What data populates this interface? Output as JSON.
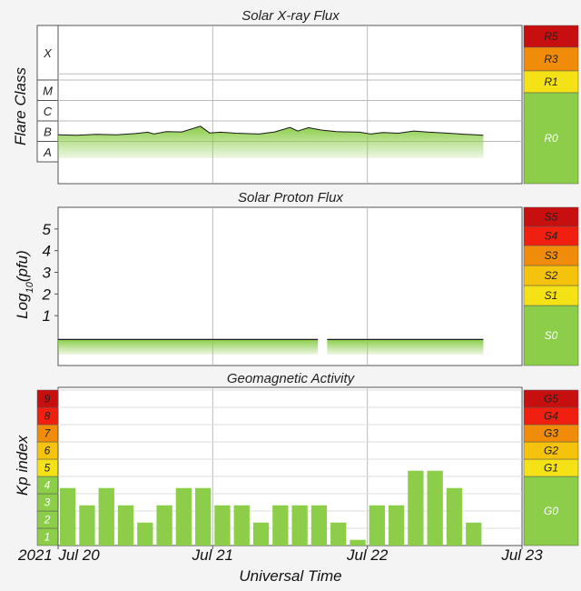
{
  "colors": {
    "green": "#8ccd4a",
    "yellow": "#f5e216",
    "orange_light": "#f5c20c",
    "orange": "#f08c0a",
    "red": "#f01f0f",
    "dark_red": "#c80f0f",
    "grid": "#bbbbbb",
    "flux_line": "#1a1a1a"
  },
  "chart_data": [
    {
      "type": "area",
      "title": "Solar X-ray Flux",
      "ylabel": "Flare Class",
      "y_scale": "log",
      "flare_classes": [
        "A",
        "B",
        "C",
        "M",
        "X"
      ],
      "scale_labels": [
        "R0",
        "R1",
        "R3",
        "R5"
      ],
      "x_ticks": [
        "Jul 20",
        "Jul 21",
        "Jul 22",
        "Jul 23"
      ],
      "series": [
        {
          "x_days": [
            0.0,
            0.12,
            0.25,
            0.38,
            0.5,
            0.58,
            0.62,
            0.7,
            0.8,
            0.92,
            0.98,
            1.05,
            1.15,
            1.3,
            1.4,
            1.5,
            1.55,
            1.62,
            1.7,
            1.8,
            1.95,
            2.02,
            2.1,
            2.2,
            2.3,
            2.4,
            2.5,
            2.6,
            2.7,
            2.75
          ],
          "class_values": [
            "B2.1",
            "B2.0",
            "B2.2",
            "B2.1",
            "B2.4",
            "B2.8",
            "B2.3",
            "B3.0",
            "B2.9",
            "B5.5",
            "B2.6",
            "B2.8",
            "B2.5",
            "B2.3",
            "B2.9",
            "B4.8",
            "B3.2",
            "B4.7",
            "B3.6",
            "B3.0",
            "B2.8",
            "B2.3",
            "B2.7",
            "B2.5",
            "B3.2",
            "B2.8",
            "B2.6",
            "B2.3",
            "B2.1",
            "B2.0"
          ]
        }
      ]
    },
    {
      "type": "area",
      "title": "Solar Proton Flux",
      "ylabel_main": "Log",
      "ylabel_sub": "10",
      "ylabel_unit": "(pfu)",
      "y_ticks": [
        "1",
        "2",
        "3",
        "4",
        "5"
      ],
      "ylim": [
        -1.3,
        6.0
      ],
      "scale_labels": [
        "S0",
        "S1",
        "S2",
        "S3",
        "S4",
        "S5"
      ],
      "x_ticks": [
        "Jul 20",
        "Jul 21",
        "Jul 22",
        "Jul 23"
      ],
      "series": [
        {
          "log10_value": -0.1,
          "segments": [
            [
              0.0,
              1.68
            ],
            [
              1.74,
              2.75
            ]
          ]
        }
      ]
    },
    {
      "type": "bar",
      "title": "Geomagnetic Activity",
      "ylabel": "Kp index",
      "xlabel": "Universal Time",
      "year_label": "2021",
      "ylim": [
        0,
        9
      ],
      "kp_labels": [
        "1",
        "2",
        "3",
        "4",
        "5",
        "6",
        "7",
        "8",
        "9"
      ],
      "scale_labels": [
        "G0",
        "G1",
        "G2",
        "G3",
        "G4",
        "G5"
      ],
      "x_ticks": [
        "Jul 20",
        "Jul 21",
        "Jul 22",
        "Jul 23"
      ],
      "bar_width_days": 0.125,
      "values": [
        3.33,
        2.33,
        3.33,
        2.33,
        1.33,
        2.33,
        3.33,
        3.33,
        2.33,
        2.33,
        1.33,
        2.33,
        2.33,
        2.33,
        1.33,
        0.33,
        2.33,
        2.33,
        4.33,
        4.33,
        3.33,
        1.33
      ]
    }
  ]
}
